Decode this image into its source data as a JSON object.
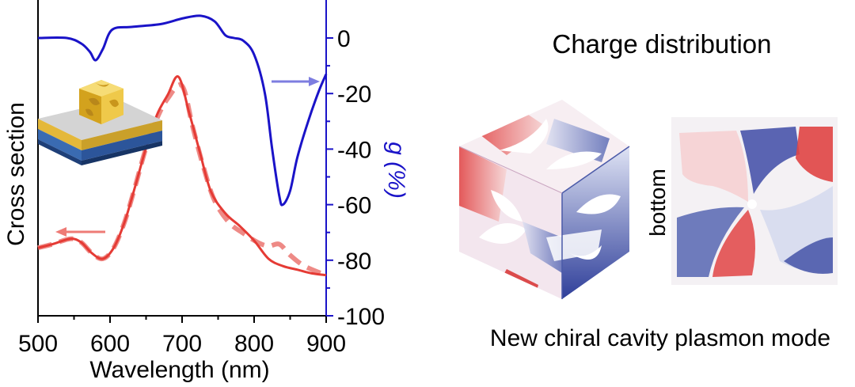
{
  "chart_data": {
    "type": "line",
    "xlabel": "Wavelength (nm)",
    "xlim": [
      500,
      900
    ],
    "x_ticks": [
      "500",
      "600",
      "700",
      "800",
      "900"
    ],
    "y_left_label": "Cross section",
    "y_right_label": "g (%)",
    "y_right_lim": [
      -100,
      15
    ],
    "y_right_ticks": [
      "0",
      "-20",
      "-40",
      "-60",
      "-80",
      "-100"
    ],
    "series": [
      {
        "axis": "right",
        "color": "#1a13c8",
        "style": "solid",
        "x": [
          500,
          540,
          560,
          572,
          580,
          590,
          603,
          630,
          670,
          700,
          725,
          745,
          760,
          772,
          785,
          800,
          815,
          825,
          835,
          840,
          850,
          860,
          875,
          890,
          900
        ],
        "y": [
          0,
          0,
          -2,
          -5,
          -8,
          -4,
          3,
          4,
          5,
          7,
          8,
          6,
          1,
          0,
          -1,
          -6,
          -20,
          -40,
          -57,
          -60,
          -55,
          -43,
          -30,
          -19,
          -13
        ]
      },
      {
        "axis": "left",
        "color": "#e53b35",
        "style": "solid",
        "x": [
          500,
          520,
          545,
          560,
          575,
          590,
          605,
          620,
          635,
          650,
          665,
          680,
          695,
          710,
          725,
          740,
          760,
          780,
          800,
          820,
          840,
          860,
          880,
          900
        ],
        "y": [
          0.16,
          0.18,
          0.21,
          0.19,
          0.13,
          0.1,
          0.16,
          0.3,
          0.5,
          0.71,
          0.89,
          1.0,
          1.1,
          0.9,
          0.68,
          0.47,
          0.35,
          0.28,
          0.2,
          0.1,
          0.06,
          0.04,
          0.02,
          0.01
        ]
      },
      {
        "axis": "left",
        "color": "#ee8a86",
        "style": "dashed",
        "x": [
          500,
          520,
          545,
          560,
          575,
          590,
          605,
          620,
          635,
          650,
          665,
          680,
          700,
          715,
          730,
          745,
          765,
          785,
          805,
          820,
          835,
          850,
          870,
          900
        ],
        "y": [
          0.16,
          0.18,
          0.21,
          0.19,
          0.13,
          0.1,
          0.16,
          0.3,
          0.5,
          0.71,
          0.87,
          0.98,
          1.05,
          0.82,
          0.6,
          0.42,
          0.3,
          0.24,
          0.19,
          0.17,
          0.18,
          0.12,
          0.06,
          0.01
        ]
      }
    ]
  },
  "right_panel": {
    "title": "Charge distribution",
    "side_label": "bottom",
    "caption": "New chiral cavity plasmon mode"
  },
  "colors": {
    "blue_axis": "#1a13c8",
    "red_curve": "#e53b35",
    "gold": "#e8b92f",
    "substrate_gray": "#c9c9c9",
    "substrate_blue": "#2e5fa8"
  }
}
